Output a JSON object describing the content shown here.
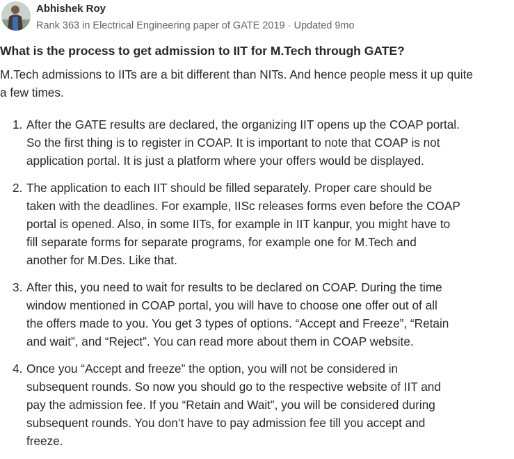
{
  "author": {
    "name": "Abhishek Roy",
    "credential": "Rank 363 in Electrical Engineering paper of GATE 2019",
    "separator": " · ",
    "updated": "Updated 9mo"
  },
  "question": "What is the process to get admission to IIT for M.Tech through GATE?",
  "intro": [
    "M.Tech admissions to IITs are a bit different than NITs. And hence people mess it up quite",
    "a few times."
  ],
  "items": [
    {
      "num": "1.",
      "lines": [
        "After the GATE results are declared, the organizing IIT opens up the COAP portal.",
        "So the first thing is to register in COAP. It is important to note that COAP is not",
        "application portal. It is just a platform where your offers would be displayed."
      ]
    },
    {
      "num": "2.",
      "lines": [
        "The application to each IIT should be filled separately. Proper care should be",
        "taken with the deadlines. For example, IISc releases forms even before the COAP",
        "portal is opened. Also, in some IITs, for example in IIT kanpur, you might have to",
        "fill separate forms for separate programs, for example one for M.Tech and",
        "another for M.Des. Like that."
      ]
    },
    {
      "num": "3.",
      "lines": [
        "After this, you need to wait for results to be declared on COAP. During the time",
        "window mentioned in COAP portal, you will have to choose one offer out of all",
        "the offers made to you. You get 3 types of options. “Accept and Freeze”, “Retain",
        "and wait”, and “Reject”. You can read more about them in COAP website."
      ]
    },
    {
      "num": "4.",
      "lines": [
        "Once you “Accept and freeze” the option, you will not be considered in",
        "subsequent rounds. So now you should go to the respective website of IIT and",
        "pay the admission fee. If you “Retain and Wait”, you will be considered during",
        "subsequent rounds. You don’t have to pay admission fee till you accept and",
        "freeze."
      ]
    }
  ]
}
